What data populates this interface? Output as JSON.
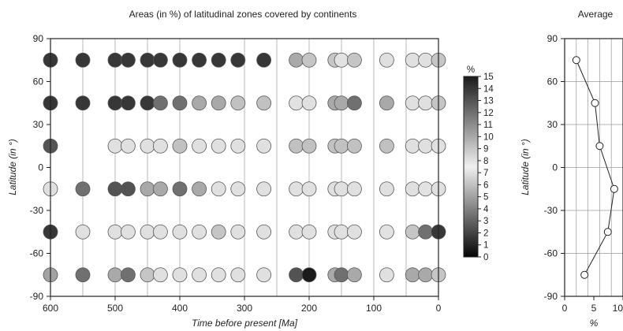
{
  "chart_data": [
    {
      "type": "scatter",
      "title": "Areas (in %) of latitudinal zones covered by continents",
      "xlabel": "Time before present [Ma]",
      "ylabel": "Latitude (in °)",
      "xlim": [
        600,
        0
      ],
      "ylim": [
        -90,
        90
      ],
      "x_ticks": [
        600,
        500,
        400,
        300,
        200,
        100,
        0
      ],
      "y_ticks": [
        90,
        60,
        30,
        0,
        -30,
        -60,
        -90
      ],
      "vertical_gridlines": [
        550,
        450,
        250,
        150,
        50
      ],
      "latitudes": [
        75,
        45,
        15,
        -15,
        -45,
        -75
      ],
      "colorbar": {
        "label": "%",
        "min": 0,
        "max": 15,
        "ticks": [
          0,
          1,
          2,
          3,
          4,
          5,
          6,
          7,
          8,
          9,
          10,
          11,
          12,
          13,
          14,
          15
        ]
      },
      "points": [
        {
          "time": 600,
          "values": [
            14,
            14,
            13,
            7,
            14,
            5
          ]
        },
        {
          "time": 550,
          "values": [
            14,
            14,
            null,
            12,
            7,
            12
          ]
        },
        {
          "time": 500,
          "values": [
            14,
            14,
            7,
            13,
            7,
            10
          ]
        },
        {
          "time": 480,
          "values": [
            14,
            14,
            7,
            13,
            7,
            12
          ]
        },
        {
          "time": 450,
          "values": [
            14,
            14,
            7,
            10,
            7,
            9
          ]
        },
        {
          "time": 430,
          "values": [
            14,
            12,
            7,
            10,
            7,
            7
          ]
        },
        {
          "time": 400,
          "values": [
            14,
            12,
            6,
            12,
            7,
            7
          ]
        },
        {
          "time": 370,
          "values": [
            14,
            10,
            7,
            10,
            7,
            7
          ]
        },
        {
          "time": 340,
          "values": [
            14,
            10,
            7,
            7,
            9,
            7
          ]
        },
        {
          "time": 310,
          "values": [
            14,
            6,
            7,
            7,
            7,
            7
          ]
        },
        {
          "time": 270,
          "values": [
            14,
            6,
            7,
            7,
            7,
            7
          ]
        },
        {
          "time": 220,
          "values": [
            10,
            8,
            6,
            7,
            7,
            13
          ]
        },
        {
          "time": 200,
          "values": [
            9,
            7,
            6,
            7,
            7,
            15
          ]
        },
        {
          "time": 160,
          "values": [
            9,
            10,
            6,
            7,
            7,
            10
          ]
        },
        {
          "time": 150,
          "values": [
            8,
            10,
            6,
            7,
            7,
            12
          ]
        },
        {
          "time": 130,
          "values": [
            9,
            12,
            6,
            7,
            7,
            10
          ]
        },
        {
          "time": 80,
          "values": [
            7,
            10,
            6,
            7,
            8,
            7
          ]
        },
        {
          "time": 40,
          "values": [
            7,
            7,
            7,
            7,
            9,
            10
          ]
        },
        {
          "time": 20,
          "values": [
            7,
            7,
            7,
            8,
            12,
            10
          ]
        },
        {
          "time": 0,
          "values": [
            9,
            9,
            7,
            7,
            14,
            9
          ]
        }
      ]
    },
    {
      "type": "line",
      "title": "Average",
      "xlabel": "%",
      "ylabel": "Latitude (in °)",
      "xlim": [
        0,
        10
      ],
      "ylim": [
        -90,
        90
      ],
      "x_ticks": [
        0,
        5,
        10
      ],
      "y_ticks": [
        90,
        60,
        30,
        0,
        -30,
        -60,
        -90
      ],
      "x_gridlines": [
        2,
        4,
        6,
        8
      ],
      "points": [
        {
          "x": 2,
          "y": 75
        },
        {
          "x": 5.2,
          "y": 45
        },
        {
          "x": 6,
          "y": 15
        },
        {
          "x": 8.5,
          "y": -15
        },
        {
          "x": 7.4,
          "y": -45
        },
        {
          "x": 3.4,
          "y": -75
        }
      ]
    }
  ]
}
